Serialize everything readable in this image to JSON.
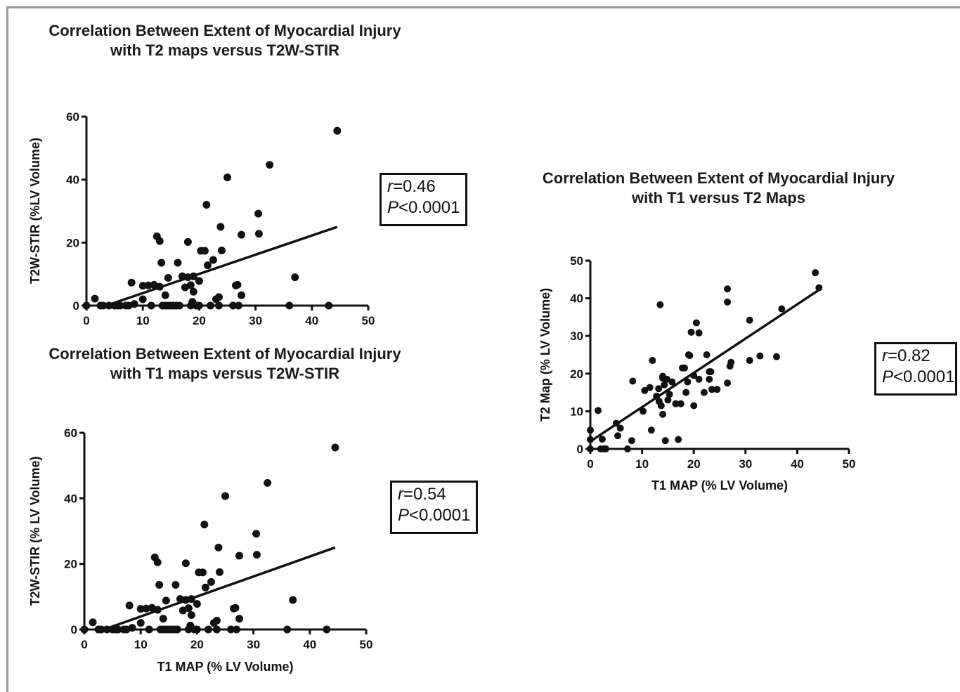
{
  "chart_data": [
    {
      "type": "scatter",
      "title": "Correlation Between Extent of Myocardial Injury\nwith T2 maps versus T2W-STIR",
      "xlabel": "",
      "ylabel": "T2W-STIR (%LV Volume)",
      "xlim": [
        0,
        50
      ],
      "ylim": [
        0,
        60
      ],
      "xticks": [
        0,
        10,
        20,
        30,
        40,
        50
      ],
      "yticks": [
        0,
        20,
        40,
        60
      ],
      "stats": {
        "r_label": "r",
        "r_value": "=0.46",
        "p_label": "P",
        "p_value": "<0.0001"
      },
      "fit_line": {
        "x": [
          3.5,
          44.5
        ],
        "y": [
          0,
          25
        ]
      },
      "points": [
        [
          0,
          0
        ],
        [
          1.5,
          2.2
        ],
        [
          2.5,
          0
        ],
        [
          3,
          0
        ],
        [
          4,
          0
        ],
        [
          5,
          0
        ],
        [
          5.5,
          0
        ],
        [
          6,
          0
        ],
        [
          7,
          0
        ],
        [
          7.5,
          0
        ],
        [
          8,
          7.3
        ],
        [
          8.5,
          0.5
        ],
        [
          10,
          6.3
        ],
        [
          10,
          2
        ],
        [
          11,
          6.4
        ],
        [
          11.5,
          0
        ],
        [
          12,
          6.6
        ],
        [
          12.5,
          22
        ],
        [
          13,
          20.5
        ],
        [
          13,
          6
        ],
        [
          13.3,
          13.6
        ],
        [
          13.5,
          0
        ],
        [
          14,
          0
        ],
        [
          14,
          3.3
        ],
        [
          14.5,
          0
        ],
        [
          14.5,
          8.8
        ],
        [
          15,
          0
        ],
        [
          15.5,
          0
        ],
        [
          16,
          0
        ],
        [
          16.2,
          13.6
        ],
        [
          16.5,
          0
        ],
        [
          17,
          9.3
        ],
        [
          17.5,
          5.8
        ],
        [
          18,
          20.2
        ],
        [
          18,
          9
        ],
        [
          18.5,
          6.5
        ],
        [
          18.5,
          0
        ],
        [
          18.8,
          1.2
        ],
        [
          19,
          9.3
        ],
        [
          19,
          4.4
        ],
        [
          19.5,
          0
        ],
        [
          20,
          0
        ],
        [
          20,
          7.8
        ],
        [
          20.3,
          17.4
        ],
        [
          21,
          17.4
        ],
        [
          21.3,
          32
        ],
        [
          21.5,
          12.8
        ],
        [
          22,
          0
        ],
        [
          22.5,
          14.5
        ],
        [
          23,
          2
        ],
        [
          23.5,
          0
        ],
        [
          23.5,
          2.7
        ],
        [
          23.8,
          25
        ],
        [
          24,
          17.5
        ],
        [
          25,
          40.7
        ],
        [
          26,
          0
        ],
        [
          26.5,
          6.4
        ],
        [
          26.8,
          6.6
        ],
        [
          27,
          0
        ],
        [
          27.5,
          22.5
        ],
        [
          27.5,
          3.3
        ],
        [
          30.5,
          29.2
        ],
        [
          30.6,
          22.8
        ],
        [
          32.5,
          44.7
        ],
        [
          36,
          0
        ],
        [
          37,
          9
        ],
        [
          43,
          0
        ],
        [
          44.5,
          55.5
        ]
      ]
    },
    {
      "type": "scatter",
      "title": "Correlation Between Extent of Myocardial Injury\nwith T1 maps versus T2W-STIR",
      "xlabel": "T1 MAP (% LV Volume)",
      "ylabel": "T2W-STIR (% LV Volume)",
      "xlim": [
        0,
        50
      ],
      "ylim": [
        0,
        60
      ],
      "xticks": [
        0,
        10,
        20,
        30,
        40,
        50
      ],
      "yticks": [
        0,
        20,
        40,
        60
      ],
      "stats": {
        "r_label": "r",
        "r_value": "=0.54",
        "p_label": "P",
        "p_value": "<0.0001"
      },
      "fit_line": {
        "x": [
          3.5,
          44.5
        ],
        "y": [
          0,
          25
        ]
      },
      "points": [
        [
          0,
          0
        ],
        [
          1.5,
          2.2
        ],
        [
          2.5,
          0
        ],
        [
          3,
          0
        ],
        [
          4,
          0
        ],
        [
          5,
          0
        ],
        [
          5.5,
          0
        ],
        [
          6,
          0
        ],
        [
          7,
          0
        ],
        [
          7.5,
          0
        ],
        [
          8,
          7.3
        ],
        [
          8.5,
          0.5
        ],
        [
          10,
          6.3
        ],
        [
          10,
          2
        ],
        [
          11,
          6.4
        ],
        [
          11.5,
          0
        ],
        [
          12,
          6.6
        ],
        [
          12.5,
          22
        ],
        [
          13,
          20.5
        ],
        [
          13,
          6
        ],
        [
          13.3,
          13.6
        ],
        [
          13.5,
          0
        ],
        [
          14,
          0
        ],
        [
          14,
          3.3
        ],
        [
          14.5,
          0
        ],
        [
          14.5,
          8.8
        ],
        [
          15,
          0
        ],
        [
          15.5,
          0
        ],
        [
          16,
          0
        ],
        [
          16.2,
          13.6
        ],
        [
          16.5,
          0
        ],
        [
          17,
          9.3
        ],
        [
          17.5,
          5.8
        ],
        [
          18,
          20.2
        ],
        [
          18,
          9
        ],
        [
          18.5,
          6.5
        ],
        [
          18.5,
          0
        ],
        [
          18.8,
          1.2
        ],
        [
          19,
          9.3
        ],
        [
          19,
          4.4
        ],
        [
          19.5,
          0
        ],
        [
          20,
          0
        ],
        [
          20,
          7.8
        ],
        [
          20.3,
          17.4
        ],
        [
          21,
          17.4
        ],
        [
          21.3,
          32
        ],
        [
          21.5,
          12.8
        ],
        [
          22,
          0
        ],
        [
          22.5,
          14.5
        ],
        [
          23,
          2
        ],
        [
          23.5,
          0
        ],
        [
          23.5,
          2.7
        ],
        [
          23.8,
          25
        ],
        [
          24,
          17.5
        ],
        [
          25,
          40.7
        ],
        [
          26,
          0
        ],
        [
          26.5,
          6.4
        ],
        [
          26.8,
          6.6
        ],
        [
          27,
          0
        ],
        [
          27.5,
          22.5
        ],
        [
          27.5,
          3.3
        ],
        [
          30.5,
          29.2
        ],
        [
          30.6,
          22.8
        ],
        [
          32.5,
          44.7
        ],
        [
          36,
          0
        ],
        [
          37,
          9
        ],
        [
          43,
          0
        ],
        [
          44.5,
          55.5
        ]
      ]
    },
    {
      "type": "scatter",
      "title": "Correlation Between Extent of Myocardial Injury\nwith T1 versus T2 Maps",
      "xlabel": "T1 MAP (% LV Volume)",
      "ylabel": "T2 Map (% LV Volume)",
      "xlim": [
        0,
        50
      ],
      "ylim": [
        0,
        50
      ],
      "xticks": [
        0,
        10,
        20,
        30,
        40,
        50
      ],
      "yticks": [
        0,
        10,
        20,
        30,
        40,
        50
      ],
      "stats": {
        "r_label": "r",
        "r_value": "=0.82",
        "p_label": "P",
        "p_value": "<0.0001"
      },
      "fit_line": {
        "x": [
          0,
          44.5
        ],
        "y": [
          2,
          42.5
        ]
      },
      "points": [
        [
          0,
          0
        ],
        [
          0,
          2.5
        ],
        [
          0,
          5
        ],
        [
          1.5,
          10.2
        ],
        [
          2,
          0
        ],
        [
          2.3,
          2.6
        ],
        [
          2.6,
          0
        ],
        [
          3,
          0
        ],
        [
          5,
          6.8
        ],
        [
          5.3,
          3.5
        ],
        [
          5.8,
          5.5
        ],
        [
          7.2,
          0
        ],
        [
          8,
          2.2
        ],
        [
          8.2,
          18
        ],
        [
          10.2,
          10
        ],
        [
          10.5,
          15.5
        ],
        [
          11.5,
          16.3
        ],
        [
          11.8,
          5
        ],
        [
          12,
          23.5
        ],
        [
          12.8,
          14
        ],
        [
          13.2,
          16
        ],
        [
          13.3,
          12.6
        ],
        [
          13.5,
          38.3
        ],
        [
          13.7,
          11.5
        ],
        [
          14,
          9.2
        ],
        [
          14,
          18.8
        ],
        [
          14,
          19.3
        ],
        [
          14.3,
          17
        ],
        [
          14.5,
          2.2
        ],
        [
          14.8,
          18.5
        ],
        [
          15,
          13
        ],
        [
          15.3,
          14.5
        ],
        [
          15.8,
          17.8
        ],
        [
          16.5,
          12
        ],
        [
          17,
          2.5
        ],
        [
          17.5,
          12
        ],
        [
          17.8,
          21.5
        ],
        [
          18.2,
          21.5
        ],
        [
          18.5,
          15
        ],
        [
          18.8,
          17.8
        ],
        [
          19,
          25
        ],
        [
          19.2,
          24.8
        ],
        [
          19.5,
          31
        ],
        [
          20,
          19.5
        ],
        [
          20,
          11.5
        ],
        [
          20.5,
          33.5
        ],
        [
          21,
          30.8
        ],
        [
          21,
          18.5
        ],
        [
          22,
          15
        ],
        [
          22.5,
          25
        ],
        [
          23,
          20.5
        ],
        [
          23,
          18.5
        ],
        [
          23.3,
          20.5
        ],
        [
          23.5,
          15.8
        ],
        [
          24.5,
          15.8
        ],
        [
          26.5,
          17.5
        ],
        [
          26.5,
          42.5
        ],
        [
          26.5,
          39
        ],
        [
          27,
          22
        ],
        [
          27.2,
          23
        ],
        [
          30.8,
          34.2
        ],
        [
          30.8,
          23.5
        ],
        [
          32.8,
          24.7
        ],
        [
          36,
          24.5
        ],
        [
          37,
          37.2
        ],
        [
          43.5,
          46.8
        ],
        [
          44.2,
          42.8
        ]
      ]
    }
  ]
}
